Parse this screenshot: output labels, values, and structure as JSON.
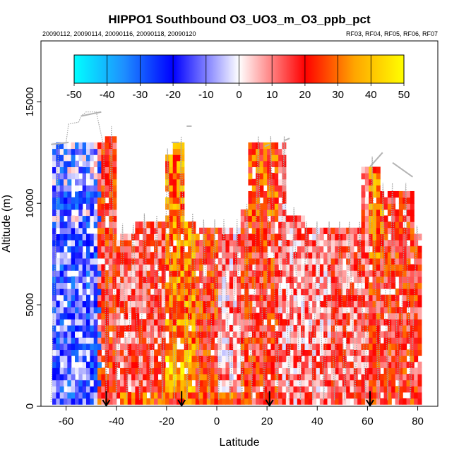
{
  "chart_data": {
    "type": "heatmap",
    "title": "HIPPO1 Southbound O3_UO3_m_O3_ppb_pct",
    "subtitle_left": "20090112, 20090114, 20090116, 20090118, 20090120",
    "subtitle_right": "RF03, RF04, RF05, RF06, RF07",
    "xlabel": "Latitude",
    "ylabel": "Altitude (m)",
    "xlim": [
      -70,
      88
    ],
    "ylim": [
      0,
      18000
    ],
    "x_ticks": [
      -60,
      -40,
      -20,
      0,
      20,
      40,
      60,
      80
    ],
    "y_ticks": [
      0,
      5000,
      10000,
      15000
    ],
    "colorbar": {
      "ticks": [
        -50,
        -40,
        -30,
        -20,
        -10,
        0,
        10,
        20,
        30,
        40,
        50
      ],
      "range": [
        -50,
        50
      ],
      "colors": [
        "#00ffff",
        "#1e90ff",
        "#0000ff",
        "#ffffff",
        "#ff0000",
        "#ffa500",
        "#ffff00"
      ]
    },
    "flight_boundary_latitudes": [
      -44,
      -14,
      21,
      61
    ],
    "grid": false,
    "legend": "colorbar top inside plot"
  }
}
